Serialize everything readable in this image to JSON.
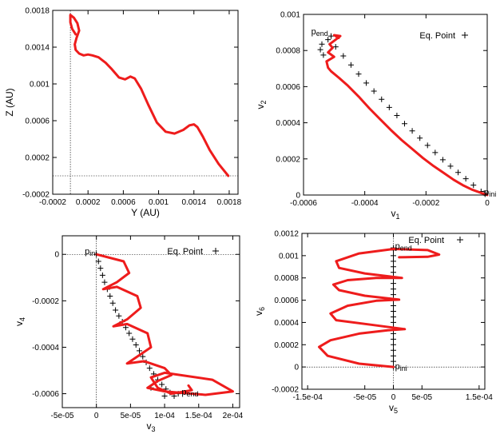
{
  "chart_data": [
    {
      "type": "line",
      "xlabel": "Y (AU)",
      "ylabel": "Z (AU)",
      "xlim": [
        -0.0002,
        0.0019
      ],
      "ylim": [
        -0.0002,
        0.0018
      ],
      "xticks": [
        "-0.0002",
        "0.0002",
        "0.0006",
        "0.001",
        "0.0014",
        "0.0018"
      ],
      "xtick_values": [
        -0.0002,
        0.0002,
        0.0006,
        0.001,
        0.0014,
        0.0018
      ],
      "yticks": [
        "-0.0002",
        "0.0002",
        "0.0006",
        "0.001",
        "0.0014",
        "0.0018"
      ],
      "ytick_values": [
        -0.0002,
        0.0002,
        0.0006,
        0.001,
        0.0014,
        0.0018
      ],
      "zero_lines": {
        "x": 0.0,
        "y": 0.0
      },
      "series": [
        {
          "style": "line",
          "color": "#ee1c1c",
          "x": [
            0.00179,
            0.00168,
            0.00158,
            0.0015,
            0.00144,
            0.0014,
            0.00135,
            0.00128,
            0.00118,
            0.00108,
            0.00098,
            0.00088,
            0.0008,
            0.00073,
            0.00068,
            0.00062,
            0.00055,
            0.00047,
            0.0004,
            0.00032,
            0.00025,
            0.0002,
            0.00015,
            0.0001,
            6e-05,
            5e-05,
            7e-05,
            0.0001,
            8e-05,
            4e-05,
            0.0,
            0.0,
            2e-05,
            6e-05
          ],
          "y": [
            0.0,
            0.00013,
            0.00028,
            0.00043,
            0.00053,
            0.00056,
            0.00055,
            0.0005,
            0.00046,
            0.00048,
            0.00058,
            0.00078,
            0.00095,
            0.00106,
            0.00108,
            0.00105,
            0.00107,
            0.00116,
            0.00123,
            0.00129,
            0.00131,
            0.00132,
            0.00131,
            0.00133,
            0.00137,
            0.00143,
            0.0015,
            0.00158,
            0.00166,
            0.00172,
            0.00175,
            0.00167,
            0.0016,
            0.00154
          ]
        }
      ],
      "annotations": []
    },
    {
      "type": "scatter",
      "xlabel": "v",
      "xlabel_sub": "1",
      "ylabel": "v",
      "ylabel_sub": "2",
      "xlim": [
        -0.0006,
        0.0
      ],
      "ylim": [
        0.0,
        0.001
      ],
      "xticks": [
        "-0.0006",
        "-0.0004",
        "-0.0002",
        "0"
      ],
      "xtick_values": [
        -0.0006,
        -0.0004,
        -0.0002,
        0.0
      ],
      "yticks": [
        "0",
        "0.0002",
        "0.0004",
        "0.0006",
        "0.0008",
        "0.001"
      ],
      "ytick_values": [
        0.0,
        0.0002,
        0.0004,
        0.0006,
        0.0008,
        0.001
      ],
      "zero_lines": {
        "x": 0.0,
        "y": 0.0
      },
      "legend": {
        "label": "Eq. Point",
        "position": "top-right"
      },
      "series": [
        {
          "name": "Eq. Point",
          "style": "points",
          "color": "#000000",
          "x": [
            -0.000545,
            -0.00054,
            -0.00052,
            -0.000495,
            -0.00047,
            -0.000445,
            -0.00042,
            -0.000395,
            -0.00037,
            -0.000345,
            -0.00032,
            -0.000295,
            -0.00027,
            -0.000245,
            -0.00022,
            -0.000195,
            -0.00017,
            -0.000145,
            -0.00012,
            -9.5e-05,
            -7e-05,
            -4.5e-05,
            -2e-05,
            -1e-05,
            -0.00051,
            -0.000535
          ],
          "y": [
            0.000805,
            0.000835,
            0.00086,
            0.00082,
            0.00077,
            0.00072,
            0.00067,
            0.00062,
            0.000575,
            0.00053,
            0.000485,
            0.00044,
            0.000395,
            0.000355,
            0.000315,
            0.000275,
            0.000235,
            0.000195,
            0.00016,
            0.000125,
            9e-05,
            5.5e-05,
            2e-05,
            1e-05,
            0.00088,
            0.000775
          ]
        },
        {
          "style": "line",
          "color": "#ee1c1c",
          "x": [
            0.0,
            -2e-05,
            -5e-05,
            -8e-05,
            -0.00011,
            -0.00014,
            -0.000175,
            -0.00021,
            -0.000245,
            -0.00028,
            -0.000315,
            -0.00035,
            -0.000385,
            -0.00042,
            -0.000455,
            -0.000485,
            -0.00051,
            -0.00052,
            -0.000525,
            -0.0005,
            -0.00052,
            -0.000505,
            -0.000515,
            -0.000495,
            -0.00048,
            -0.0005,
            -0.000485
          ],
          "y": [
            0.0,
            1.2e-05,
            3e-05,
            5.5e-05,
            8.5e-05,
            0.00012,
            0.00016,
            0.000205,
            0.000255,
            0.000305,
            0.00036,
            0.00042,
            0.00048,
            0.000545,
            0.000605,
            0.00065,
            0.000685,
            0.000705,
            0.00074,
            0.000765,
            0.00079,
            0.000815,
            0.000835,
            0.00086,
            0.00088,
            0.000885,
            0.00087
          ]
        }
      ],
      "annotations": [
        {
          "text": "p",
          "sub": "end",
          "x": -0.000575,
          "y": 0.00089
        },
        {
          "text": "p",
          "sub": "ini",
          "x": -1e-05,
          "y": 0.0
        }
      ]
    },
    {
      "type": "scatter",
      "xlabel": "v",
      "xlabel_sub": "3",
      "ylabel": "v",
      "ylabel_sub": "4",
      "xlim": [
        -5e-05,
        0.00021
      ],
      "ylim": [
        -0.00066,
        8e-05
      ],
      "xticks": [
        "-5e-05",
        "0",
        "5e-05",
        "1e-04",
        "1.5e-04",
        "2e-04"
      ],
      "xtick_values": [
        -5e-05,
        0.0,
        5e-05,
        0.0001,
        0.00015,
        0.0002
      ],
      "yticks": [
        "0",
        "-0.0002",
        "-0.0004",
        "-0.0006"
      ],
      "ytick_values": [
        0.0,
        -0.0002,
        -0.0004,
        -0.0006
      ],
      "zero_lines": {
        "x": 0.0,
        "y": 0.0
      },
      "legend": {
        "label": "Eq. Point",
        "position": "top-right"
      },
      "series": [
        {
          "name": "Eq. Point",
          "style": "points",
          "color": "#000000",
          "x": [
            0.0,
            3e-06,
            6e-06,
            9e-06,
            1.2e-05,
            1.6e-05,
            2e-05,
            2.4e-05,
            2.8e-05,
            3.3e-05,
            3.8e-05,
            4.3e-05,
            4.8e-05,
            5.3e-05,
            5.8e-05,
            6.3e-05,
            6.8e-05,
            7.3e-05,
            7.8e-05,
            8.4e-05,
            9e-05,
            9.6e-05,
            0.000102,
            0.000108,
            0.000114,
            0.00012,
            8e-05,
            0.0001
          ],
          "y": [
            0.0,
            -3e-05,
            -6e-05,
            -9e-05,
            -0.00012,
            -0.00015,
            -0.00018,
            -0.00021,
            -0.00024,
            -0.000265,
            -0.00029,
            -0.000315,
            -0.00034,
            -0.000365,
            -0.00039,
            -0.000415,
            -0.00044,
            -0.000465,
            -0.00049,
            -0.000515,
            -0.00054,
            -0.00056,
            -0.00058,
            -0.000595,
            -0.00061,
            -0.0006,
            -0.000575,
            -0.00061
          ]
        },
        {
          "style": "line",
          "color": "#ee1c1c",
          "x": [
            0.0,
            4e-05,
            4.8e-05,
            3e-05,
            1e-05,
            3e-05,
            6e-05,
            6.5e-05,
            4.5e-05,
            2.5e-05,
            4.5e-05,
            7.5e-05,
            8e-05,
            6e-05,
            4.5e-05,
            7e-05,
            0.0001,
            0.00011,
            9e-05,
            7.5e-05,
            0.0001,
            0.00016,
            0.0002,
            0.00017,
            0.0001,
            8e-05,
            9e-05,
            0.00011,
            0.00014,
            0.000135
          ],
          "y": [
            0.0,
            -3e-05,
            -8e-05,
            -0.00012,
            -0.00015,
            -0.00014,
            -0.00018,
            -0.00023,
            -0.00028,
            -0.00031,
            -0.0003,
            -0.00034,
            -0.0004,
            -0.00044,
            -0.00047,
            -0.00046,
            -0.00049,
            -0.00052,
            -0.000545,
            -0.000575,
            -0.00059,
            -0.000605,
            -0.00059,
            -0.00054,
            -0.00051,
            -0.00053,
            -0.000575,
            -0.0006,
            -0.000585,
            -0.000565
          ]
        }
      ],
      "annotations": [
        {
          "text": "p",
          "sub": "ini",
          "x": -1.7e-05,
          "y": 0.0
        },
        {
          "text": "p",
          "sub": "end",
          "x": 0.000125,
          "y": -0.000605
        }
      ]
    },
    {
      "type": "scatter",
      "xlabel": "v",
      "xlabel_sub": "5",
      "ylabel": "v",
      "ylabel_sub": "6",
      "xlim": [
        -0.00016,
        0.00016
      ],
      "ylim": [
        -0.0002,
        0.0012
      ],
      "xticks": [
        "-1.5e-04",
        "-5e-05",
        "0",
        "5e-05",
        "1.5e-04"
      ],
      "xtick_values": [
        -0.00015,
        -5e-05,
        0.0,
        5e-05,
        0.00015
      ],
      "yticks": [
        "-0.0002",
        "0",
        "0.0002",
        "0.0004",
        "0.0006",
        "0.0008",
        "0.001",
        "0.0012"
      ],
      "ytick_values": [
        -0.0002,
        0.0,
        0.0002,
        0.0004,
        0.0006,
        0.0008,
        0.001,
        0.0012
      ],
      "zero_lines": {
        "x": 0.0,
        "y": 0.0
      },
      "legend": {
        "label": "Eq. Point",
        "position": "top-right"
      },
      "series": [
        {
          "name": "Eq. Point",
          "style": "points",
          "color": "#000000",
          "x": [
            0.0,
            0.0,
            0.0,
            0.0,
            0.0,
            0.0,
            0.0,
            0.0,
            0.0,
            0.0,
            0.0,
            0.0,
            0.0,
            0.0,
            0.0,
            0.0,
            0.0,
            0.0,
            0.0,
            0.0,
            0.0,
            0.0,
            0.0
          ],
          "y": [
            0.0,
            5e-05,
            0.0001,
            0.00015,
            0.0002,
            0.00025,
            0.0003,
            0.00035,
            0.0004,
            0.00045,
            0.0005,
            0.00055,
            0.0006,
            0.00065,
            0.0007,
            0.00075,
            0.0008,
            0.00085,
            0.0009,
            0.00095,
            0.001,
            0.00105,
            0.00107
          ]
        },
        {
          "style": "line",
          "color": "#ee1c1c",
          "x": [
            0.0,
            -6e-05,
            -0.000115,
            -0.00013,
            -0.00011,
            -6e-05,
            -1e-05,
            2e-05,
            -4e-05,
            -0.0001,
            -0.00011,
            -8e-05,
            -3e-05,
            1e-05,
            -5e-05,
            -9.5e-05,
            -0.000105,
            -8e-05,
            -3e-05,
            1.5e-05,
            -5e-05,
            -9.5e-05,
            -0.0001,
            -6e-05,
            0.0,
            6e-05,
            8e-05,
            6e-05,
            1e-05
          ],
          "y": [
            0.0,
            3e-05,
            0.0001,
            0.00018,
            0.00024,
            0.0003,
            0.00033,
            0.00034,
            0.00038,
            0.00042,
            0.00048,
            0.00055,
            0.000595,
            0.000605,
            0.00064,
            0.00069,
            0.00074,
            0.00078,
            0.0008,
            0.0008,
            0.00084,
            0.00089,
            0.00095,
            0.00102,
            0.00106,
            0.00105,
            0.00101,
            0.00099,
            0.000985
          ]
        }
      ],
      "annotations": [
        {
          "text": "p",
          "sub": "end",
          "x": 3e-06,
          "y": 0.00106
        },
        {
          "text": "p",
          "sub": "ini",
          "x": 3e-06,
          "y": -2e-05
        }
      ]
    }
  ]
}
